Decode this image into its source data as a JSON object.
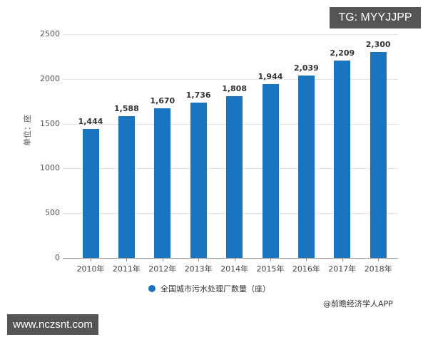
{
  "chart_data": {
    "type": "bar",
    "title": "",
    "categories": [
      "2010年",
      "2011年",
      "2012年",
      "2013年",
      "2014年",
      "2015年",
      "2016年",
      "2017年",
      "2018年"
    ],
    "values": [
      1444,
      1588,
      1670,
      1736,
      1808,
      1944,
      2039,
      2209,
      2300
    ],
    "value_labels": [
      "1,444",
      "1,588",
      "1,670",
      "1,736",
      "1,808",
      "1,944",
      "2,039",
      "2,209",
      "2,300"
    ],
    "series": [
      {
        "name": "全国城市污水处理厂数量（座）",
        "color": "#1a74c0",
        "values": [
          1444,
          1588,
          1670,
          1736,
          1808,
          1944,
          2039,
          2209,
          2300
        ]
      }
    ],
    "xlabel": "",
    "ylabel": "单位：座",
    "ylim": [
      0,
      2500
    ],
    "yticks": [
      "0",
      "500",
      "1000",
      "1500",
      "2000",
      "2500"
    ],
    "grid": true,
    "legend_position": "bottom"
  },
  "legend": {
    "label": "全国城市污水处理厂数量（座）"
  },
  "source": "@前瞻经济学人APP",
  "overlays": {
    "tg_badge": "TG: MYYJJPP",
    "website_badge": "www.nczsnt.com"
  }
}
